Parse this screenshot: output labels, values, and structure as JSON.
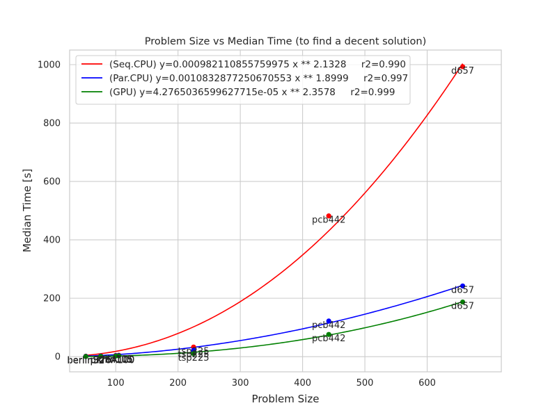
{
  "chart_data": {
    "type": "scatter",
    "title": "Problem Size vs Median Time (to find a decent solution)",
    "xlabel": "Problem Size",
    "ylabel": "Median Time [s]",
    "xlim": [
      26,
      719
    ],
    "ylim": [
      -52,
      1050
    ],
    "xticks": [
      100,
      200,
      300,
      400,
      500,
      600
    ],
    "yticks": [
      0,
      200,
      400,
      600,
      800,
      1000
    ],
    "grid": true,
    "legend_position": "top-left",
    "series": [
      {
        "name": "(Seq.CPU) y=0.0009821108557599‌75 x ** 2.1328     r2=0.990",
        "color": "#ff0000",
        "fit": {
          "a": 0.000982110855759975,
          "b": 2.1328
        },
        "points": [
          {
            "x": 52,
            "y": 1.5,
            "label": "berlin52"
          },
          {
            "x": 76,
            "y": 2.5,
            "label": "pr76"
          },
          {
            "x": 100,
            "y": 4,
            "label": "kroA100"
          },
          {
            "x": 105,
            "y": 5,
            "label": "lin105"
          },
          {
            "x": 225,
            "y": 33,
            "label": "tsp225"
          },
          {
            "x": 442,
            "y": 482,
            "label": "pcb442"
          },
          {
            "x": 657,
            "y": 993,
            "label": "d657"
          }
        ]
      },
      {
        "name": "(Par.CPU) y=0.0010832877250670553 x ** 1.8999     r2=0.997",
        "color": "#0000ff",
        "fit": {
          "a": 0.0010832877250670553,
          "b": 1.8999
        },
        "points": [
          {
            "x": 52,
            "y": 1,
            "label": "berlin52"
          },
          {
            "x": 76,
            "y": 2,
            "label": "pr76"
          },
          {
            "x": 100,
            "y": 3,
            "label": "kroA100"
          },
          {
            "x": 105,
            "y": 4,
            "label": "lin105"
          },
          {
            "x": 225,
            "y": 22,
            "label": "tsp225"
          },
          {
            "x": 442,
            "y": 122,
            "label": "pcb442"
          },
          {
            "x": 657,
            "y": 242,
            "label": "d657"
          }
        ]
      },
      {
        "name": "(GPU) y=4.2765036599627715e-05 x ** 2.3578     r2=0.999",
        "color": "#008000",
        "fit": {
          "a": 4.2765036599627715e-05,
          "b": 2.3578
        },
        "points": [
          {
            "x": 52,
            "y": 0.5,
            "label": "berlin52"
          },
          {
            "x": 76,
            "y": 1,
            "label": "pr76"
          },
          {
            "x": 100,
            "y": 2,
            "label": "kroA100"
          },
          {
            "x": 105,
            "y": 2.5,
            "label": "lin105"
          },
          {
            "x": 225,
            "y": 10,
            "label": "tsp225"
          },
          {
            "x": 442,
            "y": 76,
            "label": "pcb442"
          },
          {
            "x": 657,
            "y": 187,
            "label": "d657"
          }
        ]
      }
    ]
  }
}
